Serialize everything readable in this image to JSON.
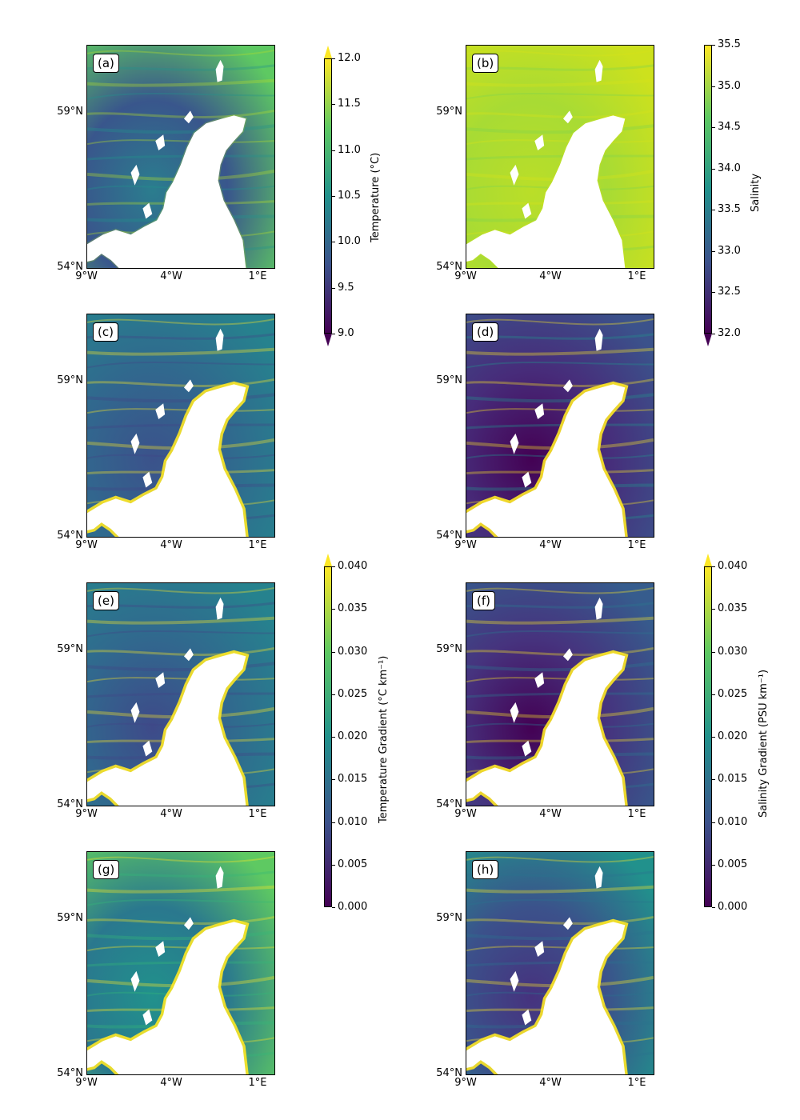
{
  "panels": [
    {
      "id": "a",
      "label": "(a)",
      "colors": [
        "#2b7d8e",
        "#39568c",
        "#5ec962",
        "#b5de2b",
        "#21918c"
      ],
      "land": "#ffffff"
    },
    {
      "id": "b",
      "label": "(b)",
      "colors": [
        "#bade28",
        "#a8db34",
        "#cde11d",
        "#d8e219",
        "#7fd34e"
      ],
      "land": "#ffffff"
    },
    {
      "id": "c",
      "label": "(c)",
      "colors": [
        "#3b528b",
        "#31688e",
        "#26828e",
        "#fde725",
        "#414487"
      ],
      "land": "#ffffff"
    },
    {
      "id": "d",
      "label": "(d)",
      "colors": [
        "#440154",
        "#472c7a",
        "#3b528b",
        "#fde725",
        "#21918c"
      ],
      "land": "#ffffff"
    },
    {
      "id": "e",
      "label": "(e)",
      "colors": [
        "#3e4a89",
        "#31688e",
        "#26828e",
        "#fde725",
        "#414487"
      ],
      "land": "#ffffff"
    },
    {
      "id": "f",
      "label": "(f)",
      "colors": [
        "#440154",
        "#46337e",
        "#365c8d",
        "#fde725",
        "#2a788e"
      ],
      "land": "#ffffff"
    },
    {
      "id": "g",
      "label": "(g)",
      "colors": [
        "#21918c",
        "#2a788e",
        "#5ec962",
        "#fde725",
        "#35b779"
      ],
      "land": "#ffffff"
    },
    {
      "id": "h",
      "label": "(h)",
      "colors": [
        "#46327e",
        "#3b528b",
        "#21918c",
        "#fde725",
        "#2c728e"
      ],
      "land": "#ffffff"
    }
  ],
  "axes": {
    "yticks": [
      "59°N",
      "54°N"
    ],
    "xticks": [
      "9°W",
      "4°W",
      "1°E"
    ]
  },
  "colorbars": [
    {
      "id": "temperature",
      "label": "Temperature (°C)",
      "ticks": [
        "12.0",
        "11.5",
        "11.0",
        "10.5",
        "10.0",
        "9.5",
        "9.0"
      ],
      "range": [
        9.0,
        12.0
      ],
      "extend": "both"
    },
    {
      "id": "salinity",
      "label": "Salinity",
      "ticks": [
        "35.5",
        "35.0",
        "34.5",
        "34.0",
        "33.5",
        "33.0",
        "32.5",
        "32.0"
      ],
      "range": [
        32.0,
        35.5
      ],
      "extend": "min"
    },
    {
      "id": "temp-gradient",
      "label": "Temperature Gradient (°C km⁻¹)",
      "ticks": [
        "0.040",
        "0.035",
        "0.030",
        "0.025",
        "0.020",
        "0.015",
        "0.010",
        "0.005",
        "0.000"
      ],
      "range": [
        0.0,
        0.04
      ],
      "extend": "max"
    },
    {
      "id": "sal-gradient",
      "label": "Salinity Gradient (PSU km⁻¹)",
      "ticks": [
        "0.040",
        "0.035",
        "0.030",
        "0.025",
        "0.020",
        "0.015",
        "0.010",
        "0.005",
        "0.000"
      ],
      "range": [
        0.0,
        0.04
      ],
      "extend": "max"
    }
  ],
  "chart_data": {
    "type": "heatmap",
    "colormap": "viridis",
    "panels": [
      "(a)",
      "(b)",
      "(c)",
      "(d)",
      "(e)",
      "(f)",
      "(g)",
      "(h)"
    ],
    "xticks": [
      "9°W",
      "4°W",
      "1°E"
    ],
    "yticks": [
      "59°N",
      "54°N"
    ],
    "colorbars": [
      {
        "label": "Temperature (°C)",
        "range": [
          9.0,
          12.0
        ]
      },
      {
        "label": "Salinity",
        "range": [
          32.0,
          35.5
        ]
      },
      {
        "label": "Temperature Gradient (°C km⁻¹)",
        "range": [
          0.0,
          0.04
        ]
      },
      {
        "label": "Salinity Gradient (PSU km⁻¹)",
        "range": [
          0.0,
          0.04
        ]
      }
    ]
  }
}
